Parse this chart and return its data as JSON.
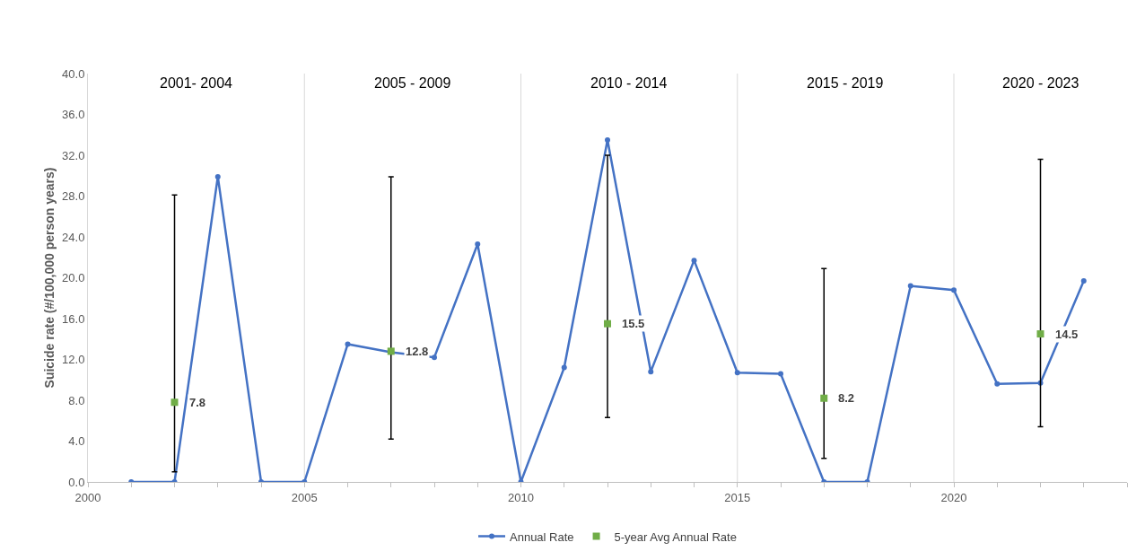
{
  "chart_data": {
    "type": "line",
    "ylabel": "Suicide rate (#/100,000 person years)",
    "x": [
      2001,
      2002,
      2003,
      2004,
      2005,
      2006,
      2007,
      2008,
      2009,
      2010,
      2011,
      2012,
      2013,
      2014,
      2015,
      2016,
      2017,
      2018,
      2019,
      2020,
      2021,
      2022,
      2023
    ],
    "series": [
      {
        "name": "Annual Rate",
        "color": "#4472c4",
        "marker": "circle",
        "values": [
          0,
          0,
          29.9,
          0,
          0,
          13.5,
          12.7,
          12.2,
          23.3,
          0,
          11.2,
          33.5,
          10.8,
          21.7,
          10.7,
          10.6,
          0,
          0,
          19.2,
          18.8,
          9.6,
          9.7,
          19.7
        ]
      },
      {
        "name": "5-year Avg Annual Rate",
        "type": "scatter",
        "color": "#70ad47",
        "marker": "square",
        "x": [
          2002,
          2007,
          2012,
          2017,
          2022
        ],
        "values": [
          7.8,
          12.8,
          15.5,
          8.2,
          14.5
        ],
        "value_labels": [
          "7.8",
          "12.8",
          "15.5",
          "8.2",
          "14.5"
        ],
        "errors": [
          [
            1.0,
            28.1
          ],
          [
            4.2,
            29.9
          ],
          [
            6.3,
            32.0
          ],
          [
            2.3,
            20.9
          ],
          [
            5.4,
            31.6
          ]
        ]
      }
    ],
    "annotations": [
      "2001- 2004",
      "2005 - 2009",
      "2010 - 2014",
      "2015 - 2019",
      "2020 - 2023"
    ],
    "xlim": [
      2000,
      2024
    ],
    "xticks": [
      2000,
      {
        "value": 2001,
        "label": null
      },
      {
        "value": 2002,
        "label": null
      },
      {
        "value": 2003,
        "label": null
      },
      {
        "value": 2004,
        "label": null
      },
      2005,
      {
        "value": 2006,
        "label": null
      },
      {
        "value": 2007,
        "label": null
      },
      {
        "value": 2008,
        "label": null
      },
      {
        "value": 2009,
        "label": null
      },
      2010,
      {
        "value": 2011,
        "label": null
      },
      {
        "value": 2012,
        "label": null
      },
      {
        "value": 2013,
        "label": null
      },
      {
        "value": 2014,
        "label": null
      },
      2015,
      {
        "value": 2016,
        "label": null
      },
      {
        "value": 2017,
        "label": null
      },
      {
        "value": 2018,
        "label": null
      },
      {
        "value": 2019,
        "label": null
      },
      2020,
      {
        "value": 2021,
        "label": null
      },
      {
        "value": 2022,
        "label": null
      },
      {
        "value": 2023,
        "label": null
      },
      {
        "value": 2024,
        "label": null
      }
    ],
    "ylim": [
      0,
      40
    ],
    "yticks": [
      {
        "value": 0,
        "label": "0.0"
      },
      {
        "value": 4,
        "label": "4.0"
      },
      {
        "value": 8,
        "label": "8.0"
      },
      {
        "value": 12,
        "label": "12.0"
      },
      {
        "value": 16,
        "label": "16.0"
      },
      {
        "value": 20,
        "label": "20.0"
      },
      {
        "value": 24,
        "label": "24.0"
      },
      {
        "value": 28,
        "label": "28.0"
      },
      {
        "value": 32,
        "label": "32.0"
      },
      {
        "value": 36,
        "label": "36.0"
      },
      {
        "value": 40,
        "label": "40.0"
      }
    ],
    "grid": "x",
    "legend": "bottom"
  }
}
